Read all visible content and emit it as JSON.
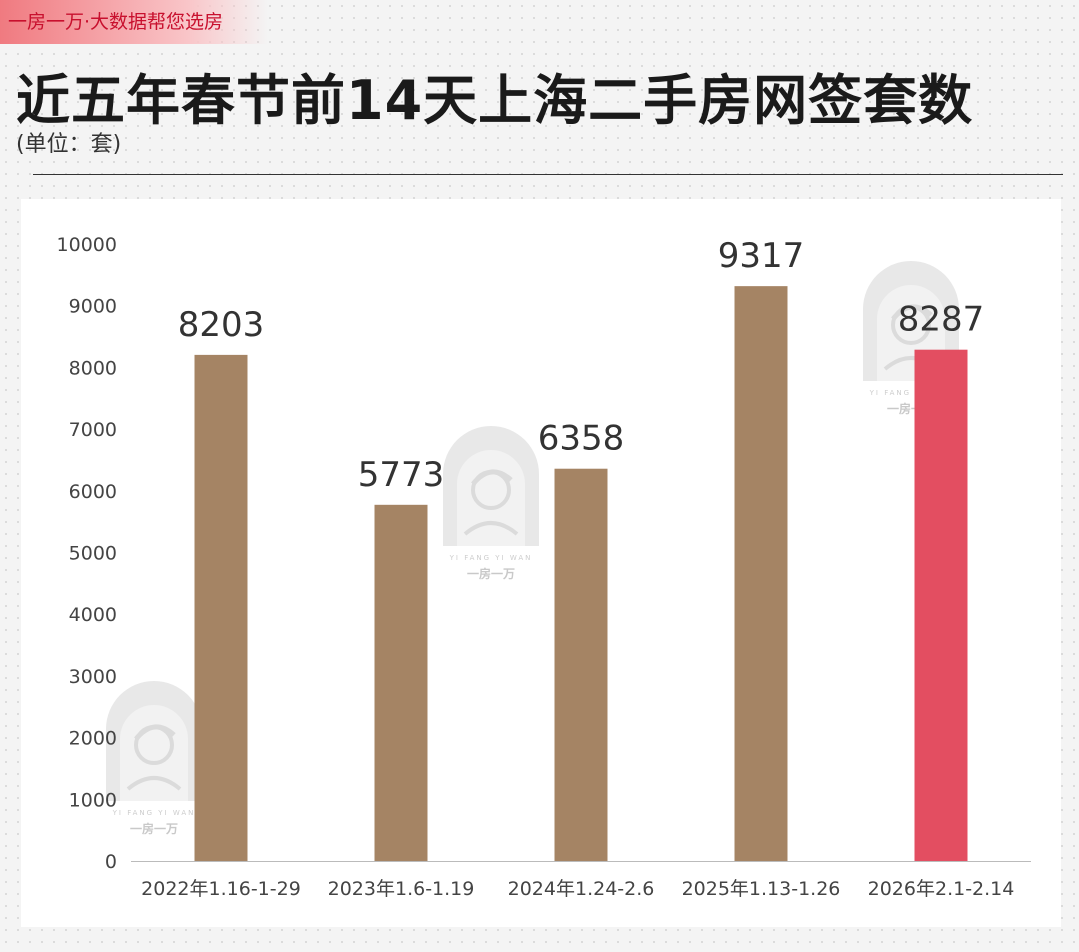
{
  "brand_tag": "一房一万·大数据帮您选房",
  "title": "近五年春节前14天上海二手房网签套数",
  "unit_note": "(单位：套)",
  "watermark": {
    "text": "一房一万",
    "small_text": "YI FANG YI WAN"
  },
  "colors": {
    "default_bar": "#a58464",
    "highlight_bar": "#e34e61",
    "axis": "#bbbbbb",
    "watermark": "#e6e6e6"
  },
  "chart_data": {
    "type": "bar",
    "title": "近五年春节前14天上海二手房网签套数",
    "xlabel": "",
    "ylabel": "",
    "ylim": [
      0,
      10000
    ],
    "yticks": [
      0,
      1000,
      2000,
      3000,
      4000,
      5000,
      6000,
      7000,
      8000,
      9000,
      10000
    ],
    "categories": [
      "2022年1.16-1-29",
      "2023年1.6-1.19",
      "2024年1.24-2.6",
      "2025年1.13-1.26",
      "2026年2.1-2.14"
    ],
    "values": [
      8203,
      5773,
      6358,
      9317,
      8287
    ],
    "highlight_index": 4,
    "grid": false,
    "legend": "none"
  }
}
